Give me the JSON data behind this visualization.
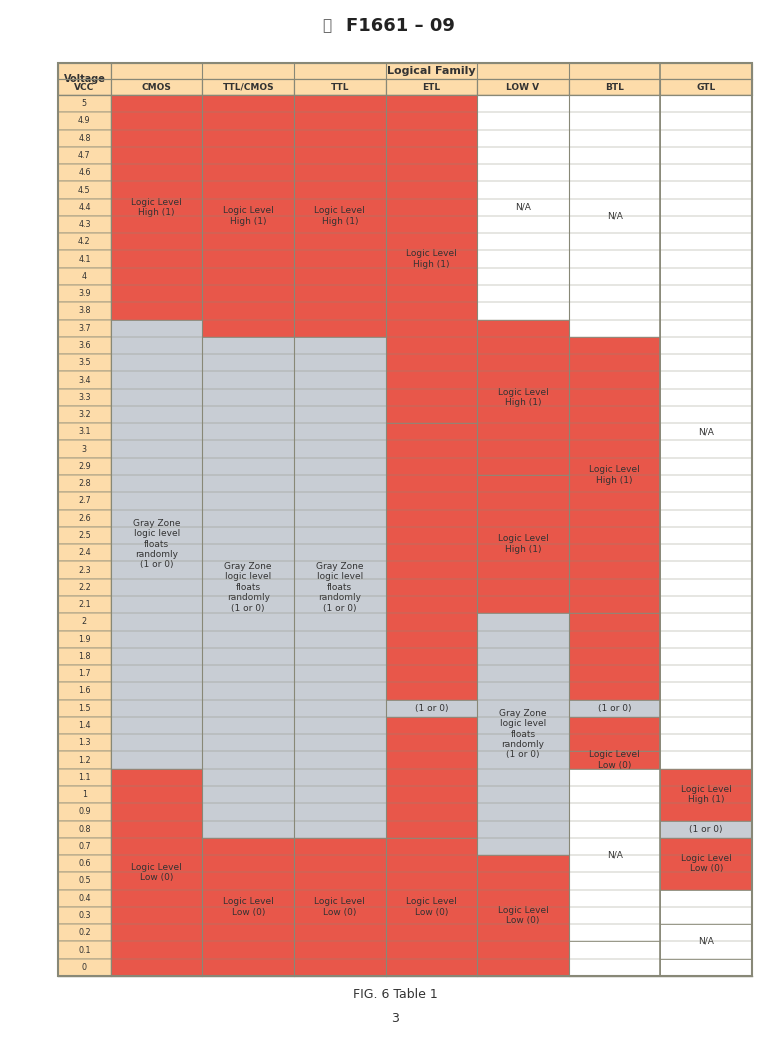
{
  "title": "F1661 – 09",
  "fig_label": "FIG. 6 Table 1",
  "page_num": "3",
  "header_bg": "#FDDCAA",
  "red_color": "#E8574A",
  "gray_color": "#C8CDD4",
  "white_color": "#FFFFFF",
  "border_color": "#888877",
  "voltages": [
    "VCC",
    "5",
    "4.9",
    "4.8",
    "4.7",
    "4.6",
    "4.5",
    "4.4",
    "4.3",
    "4.2",
    "4.1",
    "4",
    "3.9",
    "3.8",
    "3.7",
    "3.6",
    "3.5",
    "3.4",
    "3.3",
    "3.2",
    "3.1",
    "3",
    "2.9",
    "2.8",
    "2.7",
    "2.6",
    "2.5",
    "2.4",
    "2.3",
    "2.2",
    "2.1",
    "2",
    "1.9",
    "1.8",
    "1.7",
    "1.6",
    "1.5",
    "1.4",
    "1.3",
    "1.2",
    "1.1",
    "1",
    "0.9",
    "0.8",
    "0.7",
    "0.6",
    "0.5",
    "0.4",
    "0.3",
    "0.2",
    "0.1",
    "0"
  ],
  "col_rel_widths": [
    0.75,
    1.3,
    1.3,
    1.3,
    1.3,
    1.3,
    1.3,
    1.3
  ],
  "col_header_names": [
    "VCC",
    "CMOS",
    "TTL/CMOS",
    "TTL",
    "ETL",
    "LOW V",
    "BTL",
    "GTL"
  ],
  "regions": {
    "1": [
      {
        "sv": "5",
        "ev": "3.8",
        "color": "red",
        "label": "Logic Level\nHigh (1)"
      },
      {
        "sv": "3.7",
        "ev": "1.2",
        "color": "gray",
        "label": "Gray Zone\nlogic level\nfloats\nrandomly\n(1 or 0)"
      },
      {
        "sv": "1.1",
        "ev": "0",
        "color": "red",
        "label": "Logic Level\nLow (0)"
      }
    ],
    "2": [
      {
        "sv": "5",
        "ev": "3.7",
        "color": "red",
        "label": "Logic Level\nHigh (1)"
      },
      {
        "sv": "3.6",
        "ev": "0.8",
        "color": "gray",
        "label": "Gray Zone\nlogic level\nfloats\nrandomly\n(1 or 0)"
      },
      {
        "sv": "0.7",
        "ev": "0",
        "color": "red",
        "label": "Logic Level\nLow (0)"
      }
    ],
    "3": [
      {
        "sv": "5",
        "ev": "3.7",
        "color": "red",
        "label": "Logic Level\nHigh (1)"
      },
      {
        "sv": "3.6",
        "ev": "0.8",
        "color": "gray",
        "label": "Gray Zone\nlogic level\nfloats\nrandomly\n(1 or 0)"
      },
      {
        "sv": "0.7",
        "ev": "0",
        "color": "red",
        "label": "Logic Level\nLow (0)"
      }
    ],
    "4": [
      {
        "sv": "5",
        "ev": "3.2",
        "color": "red",
        "label": "Logic Level\nHigh (1)"
      },
      {
        "sv": "3.1",
        "ev": "1.6",
        "color": "red",
        "label": ""
      },
      {
        "sv": "1.5",
        "ev": "1.5",
        "color": "gray",
        "label": "(1 or 0)"
      },
      {
        "sv": "1.4",
        "ev": "0.8",
        "color": "red",
        "label": ""
      },
      {
        "sv": "0.7",
        "ev": "0",
        "color": "red",
        "label": "Logic Level\nLow (0)"
      }
    ],
    "5": [
      {
        "sv": "5",
        "ev": "3.8",
        "color": "white",
        "label": "N/A"
      },
      {
        "sv": "3.7",
        "ev": "2.9",
        "color": "red",
        "label": "Logic Level\nHigh (1)"
      },
      {
        "sv": "2.8",
        "ev": "2.1",
        "color": "red",
        "label": "Logic Level\nHigh (1)"
      },
      {
        "sv": "2",
        "ev": "0.7",
        "color": "gray",
        "label": "Gray Zone\nlogic level\nfloats\nrandomly\n(1 or 0)"
      },
      {
        "sv": "0.6",
        "ev": "0",
        "color": "red",
        "label": "Logic Level\nLow (0)"
      }
    ],
    "6": [
      {
        "sv": "5",
        "ev": "3.7",
        "color": "white",
        "label": "N/A"
      },
      {
        "sv": "3.6",
        "ev": "2.1",
        "color": "red",
        "label": "Logic Level\nHigh (1)"
      },
      {
        "sv": "2",
        "ev": "1.6",
        "color": "red",
        "label": ""
      },
      {
        "sv": "1.5",
        "ev": "1.5",
        "color": "gray",
        "label": "(1 or 0)"
      },
      {
        "sv": "1.4",
        "ev": "1.3",
        "color": "red",
        "label": ""
      },
      {
        "sv": "1.2",
        "ev": "1.2",
        "color": "red",
        "label": "Logic Level\nLow (0)"
      },
      {
        "sv": "1.1",
        "ev": "0.2",
        "color": "white",
        "label": "N/A"
      },
      {
        "sv": "0.1",
        "ev": "0",
        "color": "white",
        "label": ""
      }
    ],
    "7": [
      {
        "sv": "5",
        "ev": "1.2",
        "color": "white",
        "label": "N/A"
      },
      {
        "sv": "1.1",
        "ev": "0.9",
        "color": "red",
        "label": "Logic Level\nHigh (1)"
      },
      {
        "sv": "0.8",
        "ev": "0.8",
        "color": "gray",
        "label": "(1 or 0)"
      },
      {
        "sv": "0.7",
        "ev": "0.5",
        "color": "red",
        "label": "Logic Level\nLow (0)"
      },
      {
        "sv": "0.4",
        "ev": "0.3",
        "color": "white",
        "label": ""
      },
      {
        "sv": "0.2",
        "ev": "0.1",
        "color": "white",
        "label": "N/A"
      },
      {
        "sv": "0",
        "ev": "0",
        "color": "white",
        "label": ""
      }
    ]
  }
}
